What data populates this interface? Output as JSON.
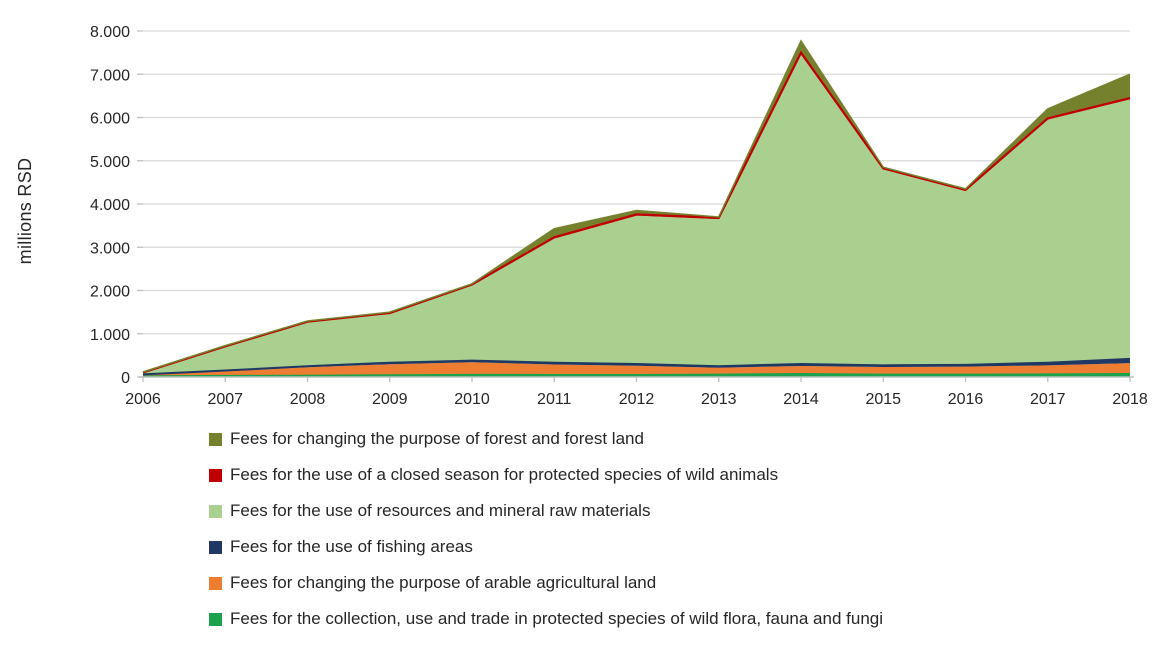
{
  "chart_data": {
    "type": "area",
    "subtype": "stacked",
    "title": "",
    "xlabel": "",
    "ylabel": "millions RSD",
    "x": [
      "2006",
      "2007",
      "2008",
      "2009",
      "2010",
      "2011",
      "2012",
      "2013",
      "2014",
      "2015",
      "2016",
      "2017",
      "2018"
    ],
    "y_tick_labels": [
      "0",
      "1.000",
      "2.000",
      "3.000",
      "4.000",
      "5.000",
      "6.000",
      "7.000",
      "8.000"
    ],
    "ylim": [
      0,
      8000
    ],
    "grid": "horizontal",
    "legend_position": "bottom-left",
    "series": [
      {
        "name": "flora-fauna-fungi",
        "label": "Fees for the collection, use and trade in protected species of wild flora, fauna and fungi",
        "color": "#1ca24c",
        "values": [
          15,
          25,
          30,
          40,
          50,
          45,
          45,
          55,
          70,
          55,
          55,
          60,
          70
        ]
      },
      {
        "name": "arable-agricultural-land",
        "label": "Fees for changing the purpose of arable agricultural land",
        "color": "#ed7d31",
        "values": [
          35,
          105,
          195,
          255,
          290,
          245,
          215,
          160,
          185,
          175,
          185,
          210,
          250
        ]
      },
      {
        "name": "fishing-areas",
        "label": "Fees for the use of fishing areas",
        "color": "#1f3864",
        "values": [
          10,
          20,
          25,
          35,
          40,
          40,
          40,
          35,
          45,
          40,
          40,
          60,
          100
        ]
      },
      {
        "name": "resources-mineral-raw-materials",
        "label": "Fees for the use of resources and mineral raw materials",
        "color": "#a9d08e",
        "values": [
          40,
          550,
          1020,
          1140,
          1750,
          2870,
          3430,
          3400,
          7150,
          4530,
          4020,
          5620,
          6000
        ]
      },
      {
        "name": "closed-season-wild-animals",
        "label": "Fees for the use of a closed season for protected species of wild animals",
        "color": "#c00000",
        "values": [
          5,
          10,
          10,
          10,
          10,
          30,
          30,
          30,
          50,
          25,
          25,
          30,
          30
        ]
      },
      {
        "name": "forest-and-forest-land",
        "label": "Fees for changing the purpose of forest and forest land",
        "color": "#76812e",
        "values": [
          10,
          15,
          15,
          20,
          15,
          200,
          90,
          20,
          270,
          25,
          25,
          220,
          550
        ]
      }
    ],
    "legend_order_series_indexes": [
      5,
      4,
      3,
      2,
      1,
      0
    ]
  }
}
